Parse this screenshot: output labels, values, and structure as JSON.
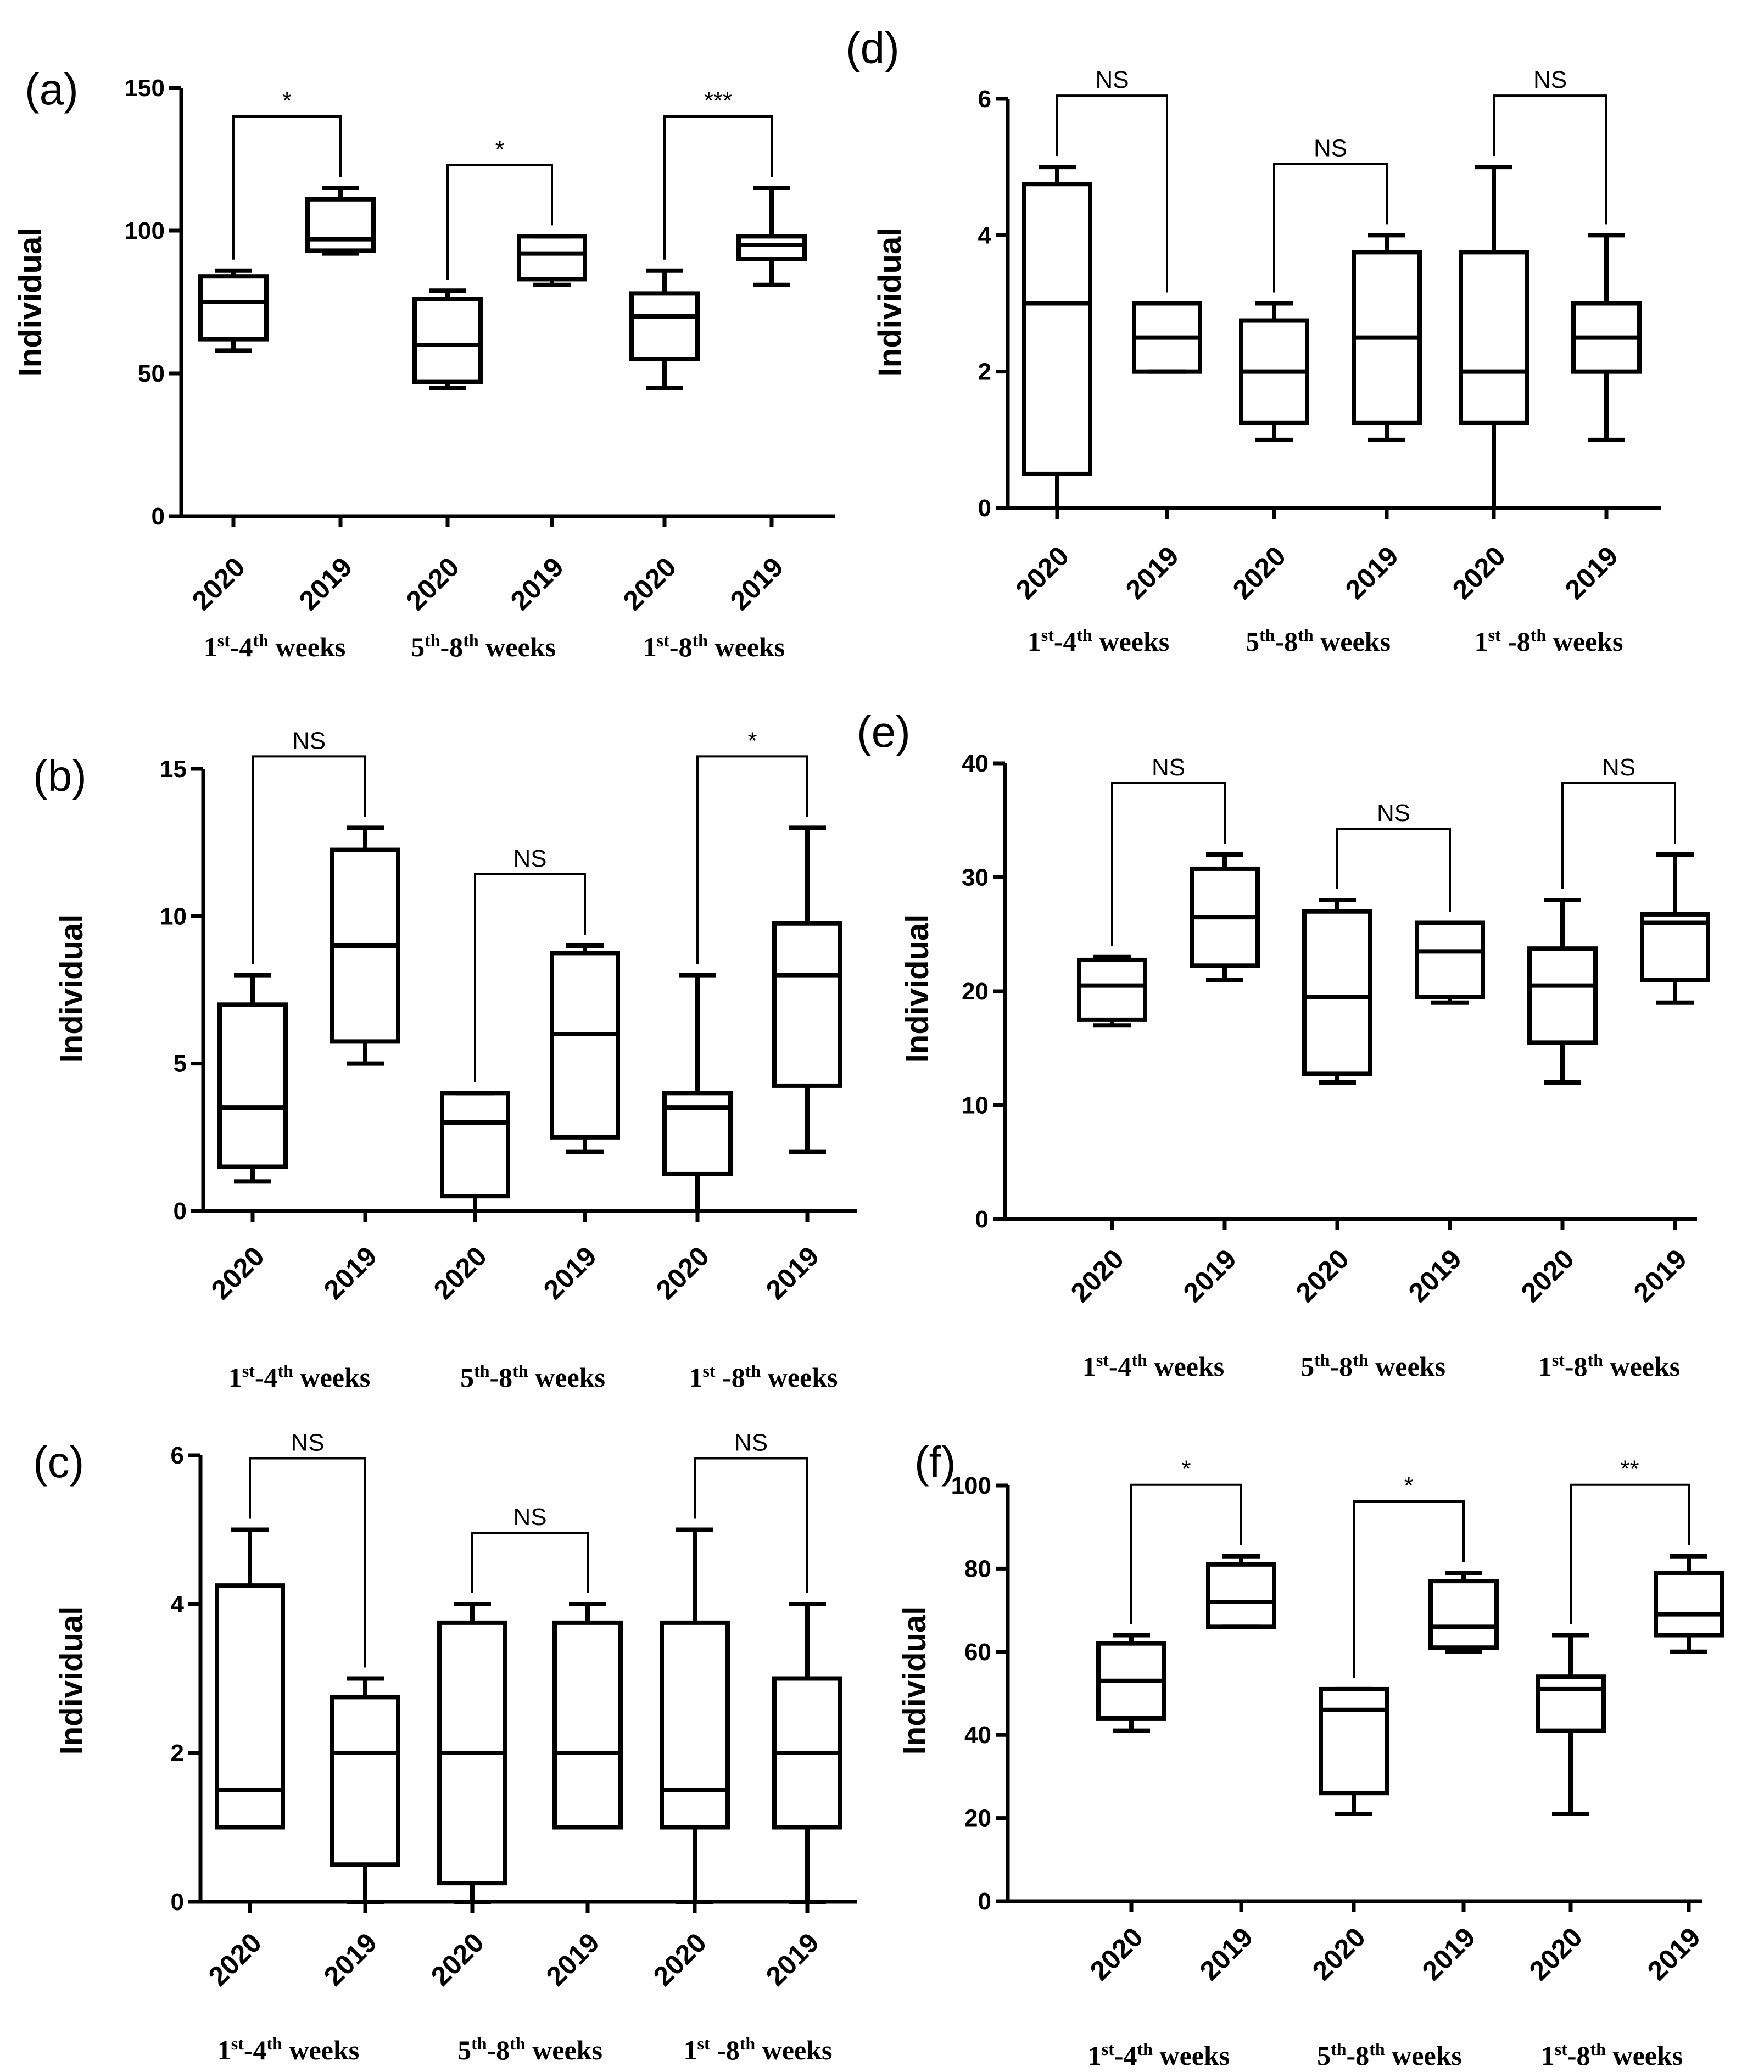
{
  "chart_data": [
    {
      "panel": "(a)",
      "type": "boxplot",
      "ylabel": "Individual",
      "ylim": [
        0,
        150
      ],
      "yticks": [
        "0",
        "50",
        "100",
        "150"
      ],
      "categories": [
        "2020",
        "2019",
        "2020",
        "2019",
        "2020",
        "2019"
      ],
      "groups": [
        {
          "label": "1st-4th weeks",
          "label_parts": [
            "1",
            "st",
            "-4",
            "th",
            " weeks"
          ]
        },
        {
          "label": "5th-8th weeks",
          "label_parts": [
            "5",
            "th",
            "-8",
            "th",
            " weeks"
          ]
        },
        {
          "label": "1st-8th weeks",
          "label_parts": [
            "1",
            "st",
            "-8",
            "th",
            " weeks"
          ]
        }
      ],
      "boxes": [
        {
          "min": 58,
          "q1": 62,
          "median": 75,
          "q3": 84,
          "max": 86
        },
        {
          "min": 92,
          "q1": 93,
          "median": 97,
          "q3": 111,
          "max": 115
        },
        {
          "min": 45,
          "q1": 47,
          "median": 60,
          "q3": 76,
          "max": 79
        },
        {
          "min": 81,
          "q1": 83,
          "median": 92,
          "q3": 98,
          "max": 98
        },
        {
          "min": 45,
          "q1": 55,
          "median": 70,
          "q3": 78,
          "max": 86
        },
        {
          "min": 81,
          "q1": 90,
          "median": 95,
          "q3": 98,
          "max": 115
        }
      ],
      "significance": [
        "*",
        "*",
        "***"
      ]
    },
    {
      "panel": "(b)",
      "type": "boxplot",
      "ylabel": "Individual",
      "ylim": [
        0,
        15
      ],
      "yticks": [
        "0",
        "5",
        "10",
        "15"
      ],
      "categories": [
        "2020",
        "2019",
        "2020",
        "2019",
        "2020",
        "2019"
      ],
      "groups": [
        {
          "label": "1st-4th weeks",
          "label_parts": [
            "1",
            "st",
            "-4",
            "th",
            " weeks"
          ]
        },
        {
          "label": "5th-8th weeks",
          "label_parts": [
            "5",
            "th",
            "-8",
            "th",
            " weeks"
          ]
        },
        {
          "label": "1st -8th weeks",
          "label_parts": [
            "1",
            "st",
            " -8",
            "th",
            " weeks"
          ]
        }
      ],
      "boxes": [
        {
          "min": 1,
          "q1": 1.5,
          "median": 3.5,
          "q3": 7,
          "max": 8
        },
        {
          "min": 5,
          "q1": 5.75,
          "median": 9,
          "q3": 12.25,
          "max": 13
        },
        {
          "min": 0,
          "q1": 0.5,
          "median": 3,
          "q3": 4,
          "max": 4
        },
        {
          "min": 2,
          "q1": 2.5,
          "median": 6,
          "q3": 8.75,
          "max": 9
        },
        {
          "min": 0,
          "q1": 1.25,
          "median": 3.5,
          "q3": 4,
          "max": 8
        },
        {
          "min": 2,
          "q1": 4.25,
          "median": 8,
          "q3": 9.75,
          "max": 13
        }
      ],
      "significance": [
        "NS",
        "NS",
        "*"
      ]
    },
    {
      "panel": "(c)",
      "type": "boxplot",
      "ylabel": "Individual",
      "ylim": [
        0,
        6
      ],
      "yticks": [
        "0",
        "2",
        "4",
        "6"
      ],
      "categories": [
        "2020",
        "2019",
        "2020",
        "2019",
        "2020",
        "2019"
      ],
      "groups": [
        {
          "label": "1st-4th weeks",
          "label_parts": [
            "1",
            "st",
            "-4",
            "th",
            " weeks"
          ]
        },
        {
          "label": "5th-8th weeks",
          "label_parts": [
            "5",
            "th",
            "-8",
            "th",
            " weeks"
          ]
        },
        {
          "label": "1st -8th weeks",
          "label_parts": [
            "1",
            "st",
            " -8",
            "th",
            " weeks"
          ]
        }
      ],
      "boxes": [
        {
          "min": 1,
          "q1": 1,
          "median": 1.5,
          "q3": 4.25,
          "max": 5
        },
        {
          "min": 0,
          "q1": 0.5,
          "median": 2,
          "q3": 2.75,
          "max": 3
        },
        {
          "min": 0,
          "q1": 0.25,
          "median": 2,
          "q3": 3.75,
          "max": 4
        },
        {
          "min": 1,
          "q1": 1,
          "median": 2,
          "q3": 3.75,
          "max": 4
        },
        {
          "min": 0,
          "q1": 1,
          "median": 1.5,
          "q3": 3.75,
          "max": 5
        },
        {
          "min": 0,
          "q1": 1,
          "median": 2,
          "q3": 3,
          "max": 4
        }
      ],
      "significance": [
        "NS",
        "NS",
        "NS"
      ]
    },
    {
      "panel": "(d)",
      "type": "boxplot",
      "ylabel": "Individual",
      "ylim": [
        0,
        6
      ],
      "yticks": [
        "0",
        "2",
        "4",
        "6"
      ],
      "categories": [
        "2020",
        "2019",
        "2020",
        "2019",
        "2020",
        "2019"
      ],
      "groups": [
        {
          "label": "1st-4th weeks",
          "label_parts": [
            "1",
            "st",
            "-4",
            "th",
            " weeks"
          ]
        },
        {
          "label": "5th-8th weeks",
          "label_parts": [
            "5",
            "th",
            "-8",
            "th",
            " weeks"
          ]
        },
        {
          "label": "1st -8th weeks",
          "label_parts": [
            "1",
            "st",
            " -8",
            "th",
            " weeks"
          ]
        }
      ],
      "boxes": [
        {
          "min": 0,
          "q1": 0.5,
          "median": 3,
          "q3": 4.75,
          "max": 5
        },
        {
          "min": 2,
          "q1": 2,
          "median": 2.5,
          "q3": 3,
          "max": 3
        },
        {
          "min": 1,
          "q1": 1.25,
          "median": 2,
          "q3": 2.75,
          "max": 3
        },
        {
          "min": 1,
          "q1": 1.25,
          "median": 2.5,
          "q3": 3.75,
          "max": 4
        },
        {
          "min": 0,
          "q1": 1.25,
          "median": 2,
          "q3": 3.75,
          "max": 5
        },
        {
          "min": 1,
          "q1": 2,
          "median": 2.5,
          "q3": 3,
          "max": 4
        }
      ],
      "significance": [
        "NS",
        "NS",
        "NS"
      ]
    },
    {
      "panel": "(e)",
      "type": "boxplot",
      "ylabel": "Individual",
      "ylim": [
        0,
        40
      ],
      "yticks": [
        "0",
        "10",
        "20",
        "30",
        "40"
      ],
      "categories": [
        "2020",
        "2019",
        "2020",
        "2019",
        "2020",
        "2019"
      ],
      "groups": [
        {
          "label": "1st-4th weeks",
          "label_parts": [
            "1",
            "st",
            "-4",
            "th",
            " weeks"
          ]
        },
        {
          "label": "5th-8th weeks",
          "label_parts": [
            "5",
            "th",
            "-8",
            "th",
            " weeks"
          ]
        },
        {
          "label": "1st-8th weeks",
          "label_parts": [
            "1",
            "st",
            "-8",
            "th",
            " weeks"
          ]
        }
      ],
      "boxes": [
        {
          "min": 17,
          "q1": 17.5,
          "median": 20.5,
          "q3": 22.75,
          "max": 23
        },
        {
          "min": 21,
          "q1": 22.25,
          "median": 26.5,
          "q3": 30.75,
          "max": 32
        },
        {
          "min": 12,
          "q1": 12.75,
          "median": 19.5,
          "q3": 27,
          "max": 28
        },
        {
          "min": 19,
          "q1": 19.5,
          "median": 23.5,
          "q3": 26,
          "max": 26
        },
        {
          "min": 12,
          "q1": 15.5,
          "median": 20.5,
          "q3": 23.75,
          "max": 28
        },
        {
          "min": 19,
          "q1": 21,
          "median": 26,
          "q3": 26.75,
          "max": 32
        }
      ],
      "significance": [
        "NS",
        "NS",
        "NS"
      ]
    },
    {
      "panel": "(f)",
      "type": "boxplot",
      "ylabel": "Individual",
      "ylim": [
        0,
        100
      ],
      "yticks": [
        "0",
        "20",
        "40",
        "60",
        "80",
        "100"
      ],
      "categories": [
        "2020",
        "2019",
        "2020",
        "2019",
        "2020",
        "2019"
      ],
      "groups": [
        {
          "label": "1st-4th weeks",
          "label_parts": [
            "1",
            "st",
            "-4",
            "th",
            " weeks"
          ]
        },
        {
          "label": "5th-8th weeks",
          "label_parts": [
            "5",
            "th",
            "-8",
            "th",
            " weeks"
          ]
        },
        {
          "label": "1st-8th weeks",
          "label_parts": [
            "1",
            "st",
            "-8",
            "th",
            " weeks"
          ]
        }
      ],
      "boxes": [
        {
          "min": 41,
          "q1": 44,
          "median": 53,
          "q3": 62,
          "max": 64
        },
        {
          "min": 66,
          "q1": 66,
          "median": 72,
          "q3": 81,
          "max": 83
        },
        {
          "min": 21,
          "q1": 26,
          "median": 46,
          "q3": 51,
          "max": 51
        },
        {
          "min": 60,
          "q1": 61,
          "median": 66,
          "q3": 77,
          "max": 79
        },
        {
          "min": 21,
          "q1": 41,
          "median": 51,
          "q3": 54,
          "max": 64
        },
        {
          "min": 60,
          "q1": 64,
          "median": 69,
          "q3": 79,
          "max": 83
        }
      ],
      "significance": [
        "*",
        "*",
        "**"
      ]
    }
  ]
}
